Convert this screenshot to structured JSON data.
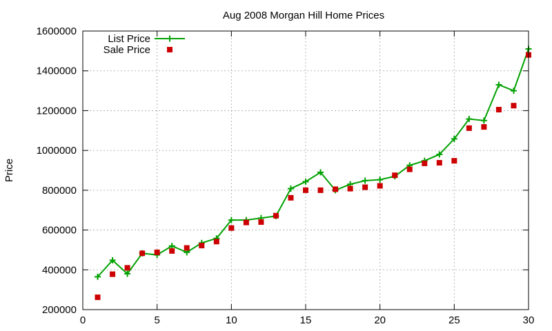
{
  "chart_data": {
    "type": "line",
    "title": "Aug 2008 Morgan Hill Home Prices",
    "xlabel": "",
    "ylabel": "Price",
    "xlim": [
      0,
      30
    ],
    "ylim": [
      200000,
      1600000
    ],
    "xticks": [
      0,
      5,
      10,
      15,
      20,
      25,
      30
    ],
    "yticks": [
      200000,
      400000,
      600000,
      800000,
      1000000,
      1200000,
      1400000,
      1600000
    ],
    "grid": true,
    "legend_position": "top-left",
    "x": [
      1,
      2,
      3,
      4,
      5,
      6,
      7,
      8,
      9,
      10,
      11,
      12,
      13,
      14,
      15,
      16,
      17,
      18,
      19,
      20,
      21,
      22,
      23,
      24,
      25,
      26,
      27,
      28,
      29,
      30
    ],
    "series": [
      {
        "name": "List Price",
        "style": "linespoints",
        "marker": "plus",
        "color": "#00a000",
        "values": [
          365000,
          448000,
          380000,
          483000,
          475000,
          520000,
          488000,
          535000,
          558000,
          650000,
          650000,
          660000,
          670000,
          808000,
          843000,
          890000,
          800000,
          830000,
          848000,
          853000,
          870000,
          925000,
          948000,
          980000,
          1058000,
          1158000,
          1150000,
          1330000,
          1300000,
          1510000
        ]
      },
      {
        "name": "Sale Price",
        "style": "points",
        "marker": "square",
        "color": "#cc0000",
        "values": [
          262000,
          378000,
          410000,
          483000,
          488000,
          495000,
          510000,
          522000,
          542000,
          610000,
          638000,
          640000,
          672000,
          762000,
          800000,
          800000,
          805000,
          808000,
          815000,
          822000,
          875000,
          905000,
          935000,
          938000,
          948000,
          1112000,
          1118000,
          1205000,
          1225000,
          1480000
        ]
      }
    ]
  }
}
